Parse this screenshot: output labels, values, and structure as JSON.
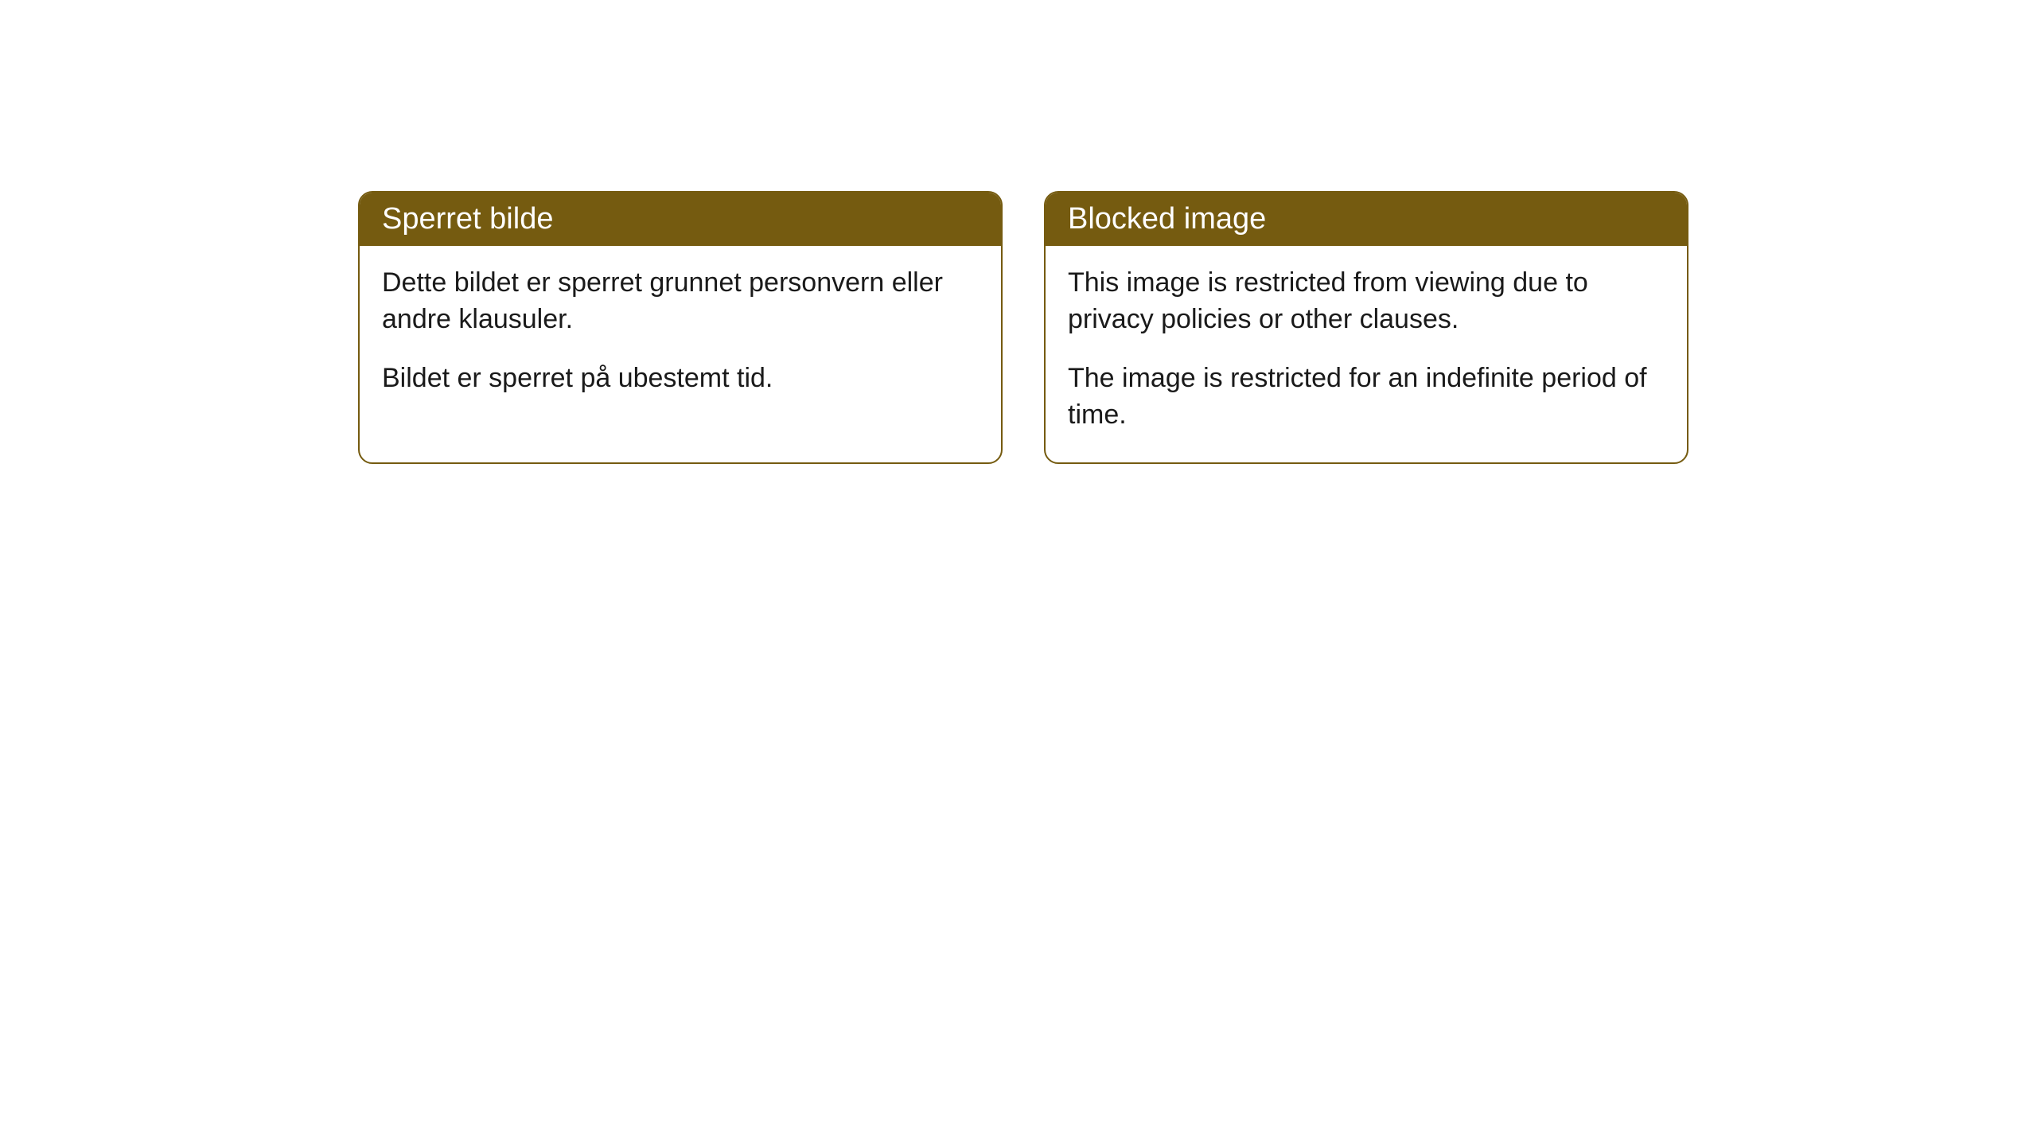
{
  "cards": [
    {
      "header": "Sperret bilde",
      "paragraph1": "Dette bildet er sperret grunnet personvern eller andre klausuler.",
      "paragraph2": "Bildet er sperret på ubestemt tid."
    },
    {
      "header": "Blocked image",
      "paragraph1": "This image is restricted from viewing due to privacy policies or other clauses.",
      "paragraph2": "The image is restricted for an indefinite period of time."
    }
  ],
  "styling": {
    "header_bg_color": "#755b10",
    "header_text_color": "#ffffff",
    "border_color": "#755b10",
    "body_bg_color": "#ffffff",
    "body_text_color": "#1a1a1a",
    "border_radius": 18,
    "header_fontsize": 38,
    "body_fontsize": 34
  }
}
